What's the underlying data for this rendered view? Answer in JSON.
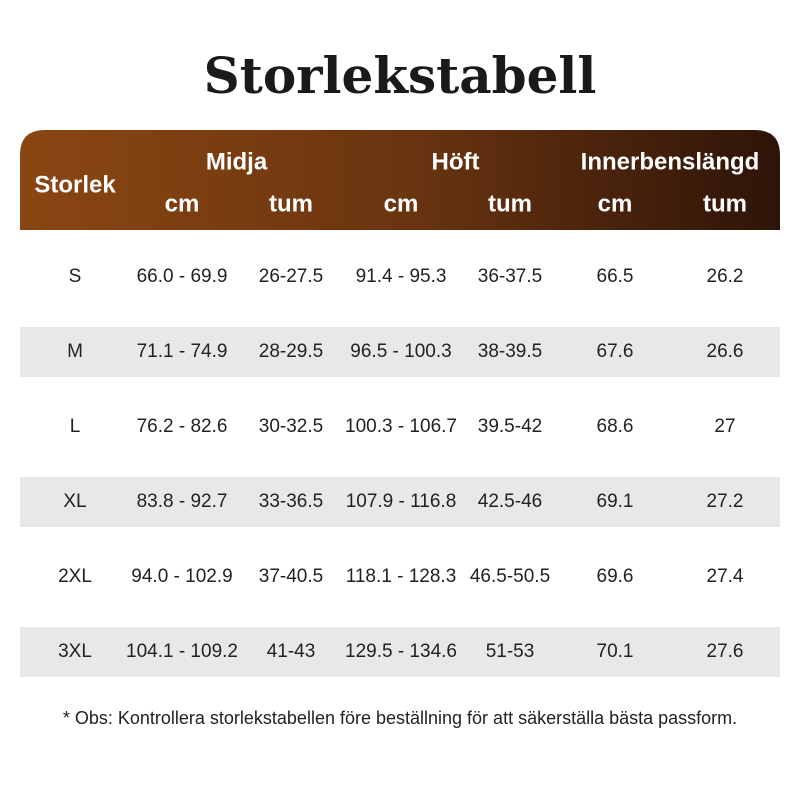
{
  "title": "Storlekstabell",
  "table": {
    "size_header": "Storlek",
    "groups": [
      {
        "label": "Midja",
        "units": [
          "cm",
          "tum"
        ]
      },
      {
        "label": "Höft",
        "units": [
          "cm",
          "tum"
        ]
      },
      {
        "label": "Innerbenslängd",
        "units": [
          "cm",
          "tum"
        ]
      }
    ],
    "rows": [
      [
        "S",
        "66.0 - 69.9",
        "26-27.5",
        "91.4 - 95.3",
        "36-37.5",
        "66.5",
        "26.2"
      ],
      [
        "M",
        "71.1 - 74.9",
        "28-29.5",
        "96.5 - 100.3",
        "38-39.5",
        "67.6",
        "26.6"
      ],
      [
        "L",
        "76.2 - 82.6",
        "30-32.5",
        "100.3 - 106.7",
        "39.5-42",
        "68.6",
        "27"
      ],
      [
        "XL",
        "83.8 - 92.7",
        "33-36.5",
        "107.9 - 116.8",
        "42.5-46",
        "69.1",
        "27.2"
      ],
      [
        "2XL",
        "94.0 - 102.9",
        "37-40.5",
        "118.1 - 128.3",
        "46.5-50.5",
        "69.6",
        "27.4"
      ],
      [
        "3XL",
        "104.1 - 109.2",
        "41-43",
        "129.5 - 134.6",
        "51-53",
        "70.1",
        "27.6"
      ]
    ]
  },
  "note": "* Obs: Kontrollera storlekstabellen före beställning för att säkerställa bästa passform."
}
